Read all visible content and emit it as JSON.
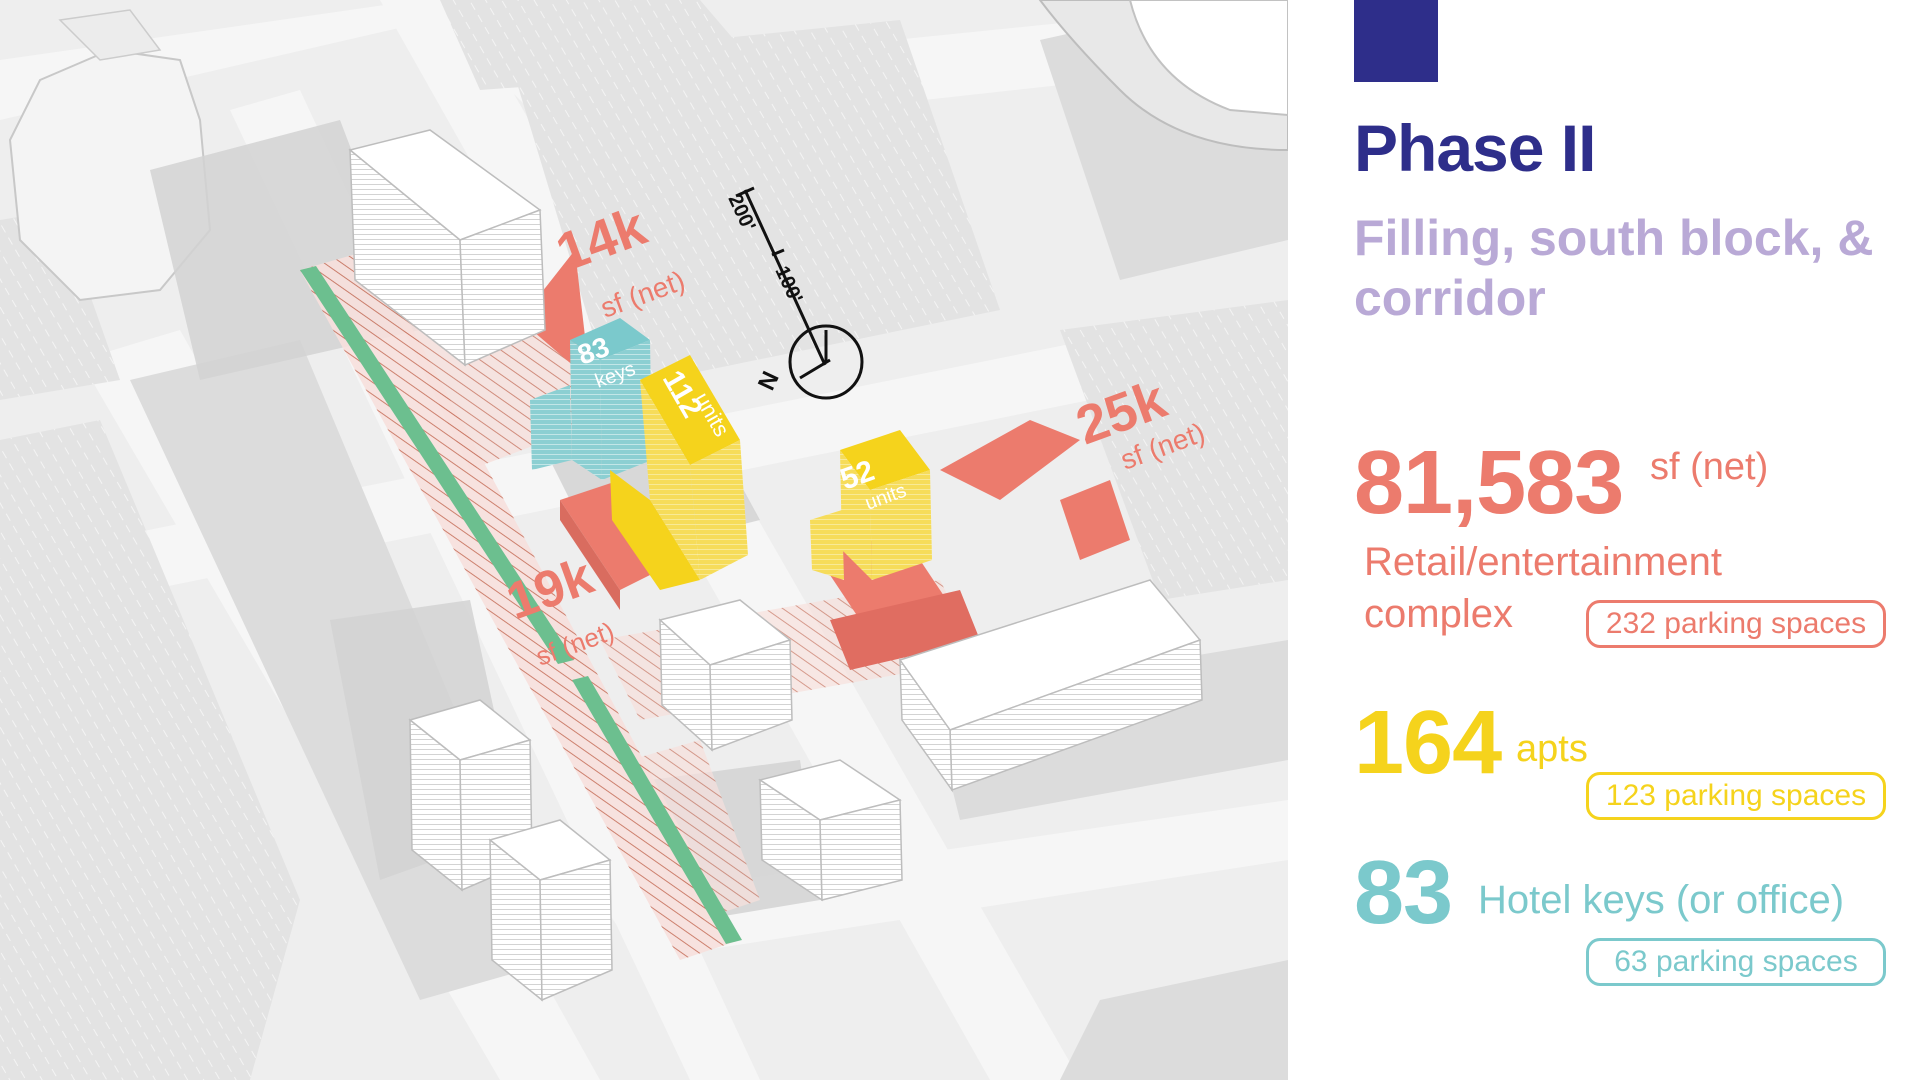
{
  "panel": {
    "title": "Phase II",
    "subtitle": "Filling, south block, & corridor",
    "retail": {
      "value": "81,583",
      "unit": "sf (net)",
      "label_line1": "Retail/entertainment",
      "label_line2": "complex",
      "parking": "232 parking spaces",
      "color": "#ec7b6d"
    },
    "apartments": {
      "value": "164",
      "unit": "apts",
      "parking": "123 parking spaces",
      "color": "#f5d31c"
    },
    "hotel": {
      "value": "83",
      "unit": "Hotel keys (or office)",
      "parking": "63 parking spaces",
      "color": "#7bc9cc"
    },
    "accent_color": "#2e2e8a",
    "subtitle_color": "#b9a9d6"
  },
  "map": {
    "labels": {
      "retail_14k": "14k",
      "retail_14k_unit": "sf (net)",
      "retail_19k": "19k",
      "retail_19k_unit": "sf (net)",
      "retail_25k": "25k",
      "retail_25k_unit": "sf (net)",
      "hotel_83": "83",
      "hotel_keys": "keys",
      "apt_112": "112",
      "apt_112_units": "units",
      "apt_52": "52",
      "apt_52_units": "units"
    },
    "scale": {
      "tick_100": "100'",
      "tick_200": "200'",
      "north": "N"
    }
  }
}
